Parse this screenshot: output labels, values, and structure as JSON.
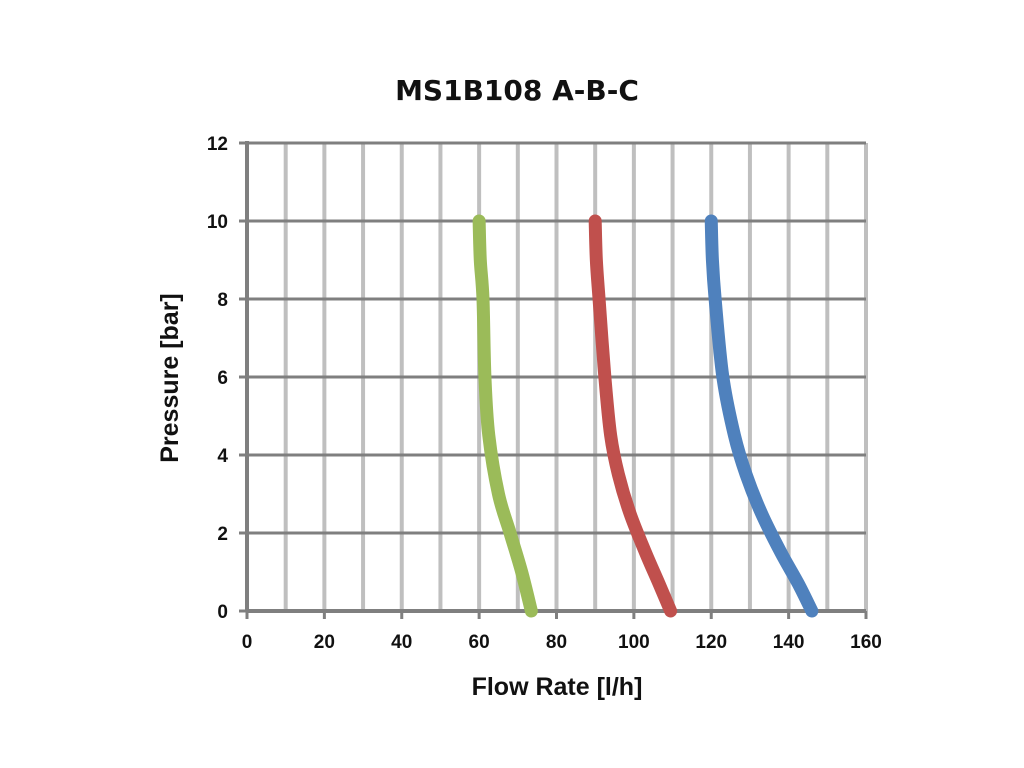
{
  "chart_data": {
    "type": "line",
    "title": "MS1B108 A-B-C",
    "xlabel": "Flow Rate [l/h]",
    "ylabel": "Pressure [bar]",
    "xlim": [
      0,
      160
    ],
    "ylim": [
      0,
      12
    ],
    "x_ticks": [
      "0",
      "20",
      "40",
      "60",
      "80",
      "100",
      "120",
      "140",
      "160"
    ],
    "y_ticks": [
      "0",
      "2",
      "4",
      "6",
      "8",
      "10",
      "12"
    ],
    "x_grid_step": 10,
    "y_grid_step": 2,
    "grid": true,
    "legend": "none",
    "series": [
      {
        "color": "#9bbb59",
        "points": [
          [
            60,
            10
          ],
          [
            60.3,
            9
          ],
          [
            61,
            8
          ],
          [
            61.5,
            6
          ],
          [
            62.5,
            4.5
          ],
          [
            65,
            3
          ],
          [
            68,
            2
          ],
          [
            71,
            1
          ],
          [
            73.5,
            0
          ]
        ]
      },
      {
        "color": "#c0504d",
        "points": [
          [
            90,
            10
          ],
          [
            90.3,
            9
          ],
          [
            91,
            8
          ],
          [
            92.5,
            6
          ],
          [
            94,
            4.5
          ],
          [
            96,
            3.5
          ],
          [
            99,
            2.5
          ],
          [
            103,
            1.5
          ],
          [
            106.5,
            0.7
          ],
          [
            109.5,
            0
          ]
        ]
      },
      {
        "color": "#4f81bd",
        "points": [
          [
            120,
            10
          ],
          [
            120.3,
            9
          ],
          [
            121,
            8
          ],
          [
            123,
            6
          ],
          [
            126,
            4.5
          ],
          [
            129,
            3.5
          ],
          [
            133,
            2.5
          ],
          [
            138,
            1.5
          ],
          [
            142.5,
            0.7
          ],
          [
            146,
            0
          ]
        ]
      }
    ]
  }
}
